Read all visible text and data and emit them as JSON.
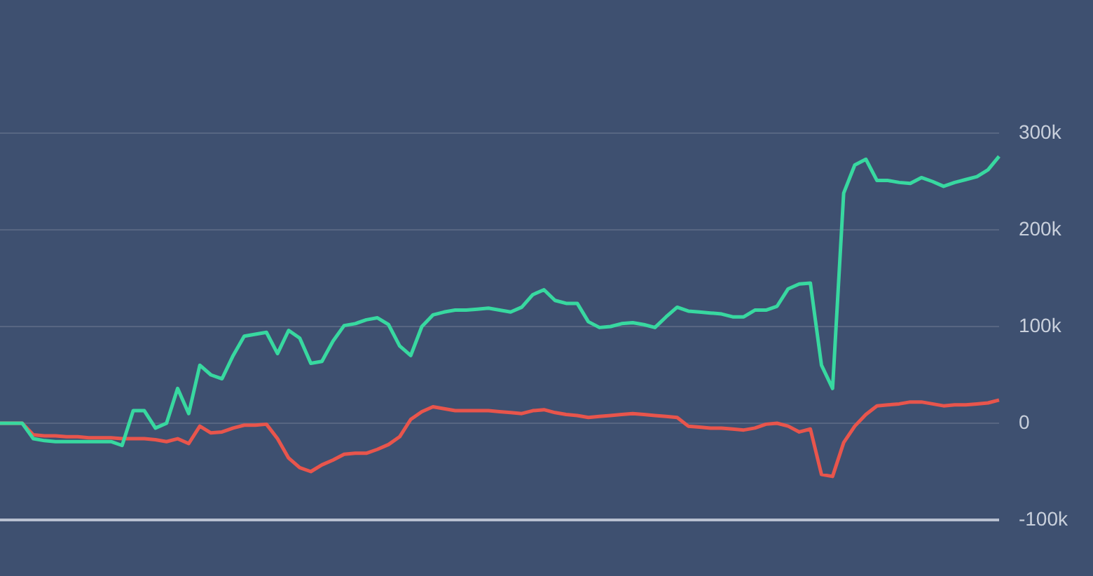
{
  "chart_data": {
    "type": "line",
    "categories": [
      null,
      null,
      null,
      null,
      null,
      null,
      null,
      null,
      null,
      null,
      null,
      null,
      null,
      null,
      null,
      null,
      null,
      null,
      null,
      null,
      null,
      null,
      null,
      null,
      null,
      null,
      null,
      null,
      null,
      null,
      null,
      null,
      null,
      null,
      null,
      null,
      null,
      null,
      null,
      null,
      null,
      null,
      null,
      null,
      null,
      null,
      null,
      null,
      null,
      null,
      null,
      null,
      null,
      null,
      null,
      null,
      null,
      null,
      null,
      null,
      null,
      null,
      null,
      null,
      null,
      null,
      null,
      null,
      null,
      null,
      null,
      null,
      null,
      null,
      null,
      null,
      null,
      null,
      null,
      null,
      null,
      null,
      null,
      null,
      null,
      null,
      null,
      null,
      null,
      null,
      null
    ],
    "series": [
      {
        "color": "#38d8a0",
        "values": [
          0,
          0,
          0,
          -16000,
          -18000,
          -19000,
          -19000,
          -19000,
          -19000,
          -19000,
          -19000,
          -23000,
          13000,
          13000,
          -5000,
          0,
          36000,
          10000,
          60000,
          50000,
          46000,
          70000,
          90000,
          92000,
          94000,
          72000,
          96000,
          88000,
          62000,
          64000,
          85000,
          101000,
          103000,
          107000,
          109000,
          102000,
          80000,
          70000,
          100000,
          112000,
          115000,
          117000,
          117000,
          118000,
          119000,
          117000,
          115000,
          120000,
          133000,
          138000,
          127000,
          124000,
          124000,
          105000,
          99000,
          100000,
          103000,
          104000,
          102000,
          99000,
          110000,
          120000,
          116000,
          115000,
          114000,
          113000,
          110000,
          110000,
          117000,
          117000,
          121000,
          139000,
          144000,
          145000,
          60000,
          36000,
          238000,
          267000,
          273000,
          251000,
          251000,
          249000,
          248000,
          254000,
          250000,
          245000,
          249000,
          252000,
          255000,
          262000,
          276000
        ]
      },
      {
        "color": "#e8554c",
        "values": [
          0,
          0,
          0,
          -12000,
          -13000,
          -13000,
          -14000,
          -14000,
          -15000,
          -15000,
          -15000,
          -16000,
          -16000,
          -16000,
          -17000,
          -19000,
          -16000,
          -21000,
          -3000,
          -10000,
          -9000,
          -5000,
          -2000,
          -2000,
          -1000,
          -16000,
          -36000,
          -46000,
          -50000,
          -43000,
          -38000,
          -32000,
          -31000,
          -31000,
          -27000,
          -22000,
          -14000,
          4000,
          12000,
          17000,
          15000,
          13000,
          13000,
          13000,
          13000,
          12000,
          11000,
          10000,
          13000,
          14000,
          11000,
          9000,
          8000,
          6000,
          7000,
          8000,
          9000,
          10000,
          9000,
          8000,
          7000,
          6000,
          -3000,
          -4000,
          -5000,
          -5000,
          -6000,
          -7000,
          -5000,
          -1000,
          0,
          -3000,
          -9000,
          -6000,
          -53000,
          -55000,
          -20000,
          -3000,
          9000,
          18000,
          19000,
          20000,
          22000,
          22000,
          20000,
          18000,
          19000,
          19000,
          20000,
          21000,
          24000
        ]
      }
    ],
    "ylim": [
      -100000,
      300000
    ],
    "yticks": [
      {
        "value": -100000,
        "label": "-100k"
      },
      {
        "value": 0,
        "label": "0"
      },
      {
        "value": 100000,
        "label": "100k"
      },
      {
        "value": 200000,
        "label": "200k"
      },
      {
        "value": 300000,
        "label": "300k"
      }
    ],
    "tick_labels": "y",
    "grid": "y",
    "legend": false,
    "marker": "none",
    "line_style": "solid"
  }
}
